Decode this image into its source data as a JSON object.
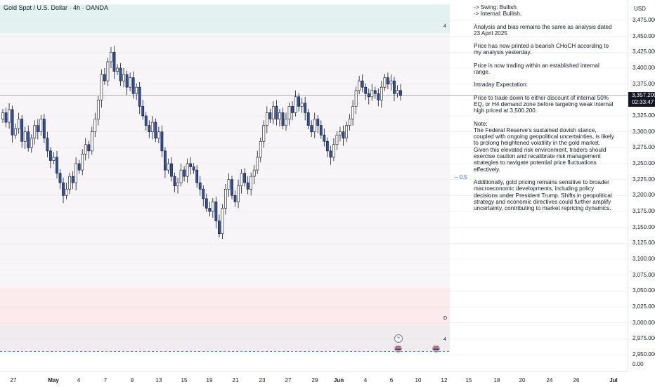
{
  "symbol": {
    "title": "Gold Spot / U.S. Dollar · 4h · OANDA",
    "currency": "USD"
  },
  "last_price": {
    "price": "3,357.200",
    "countdown": "02:33:47"
  },
  "price_axis": {
    "labels": [
      "3,475.000",
      "3,450.000",
      "3,425.000",
      "3,400.000",
      "3,375.000",
      "3,325.000",
      "3,300.000",
      "3,275.000",
      "3,250.000",
      "3,225.000",
      "3,200.000",
      "3,175.000",
      "3,150.000",
      "3,125.000",
      "3,100.000",
      "3,075.000",
      "3,050.000",
      "3,025.000",
      "3,000.000",
      "2,975.000",
      "2,950.000",
      "0.00"
    ],
    "values": [
      3475,
      3450,
      3425,
      3400,
      3375,
      3325,
      3300,
      3275,
      3250,
      3225,
      3200,
      3175,
      3150,
      3125,
      3100,
      3075,
      3050,
      3025,
      3000,
      2975,
      2950,
      null
    ]
  },
  "time_axis": [
    {
      "label": "27",
      "month": false
    },
    {
      "label": "May",
      "month": true
    },
    {
      "label": "4",
      "month": false
    },
    {
      "label": "7",
      "month": false
    },
    {
      "label": "9",
      "month": false
    },
    {
      "label": "13",
      "month": false
    },
    {
      "label": "15",
      "month": false
    },
    {
      "label": "19",
      "month": false
    },
    {
      "label": "21",
      "month": false
    },
    {
      "label": "23",
      "month": false
    },
    {
      "label": "27",
      "month": false
    },
    {
      "label": "29",
      "month": false
    },
    {
      "label": "Jun",
      "month": true
    },
    {
      "label": "4",
      "month": false
    },
    {
      "label": "6",
      "month": false
    },
    {
      "label": "10",
      "month": false
    },
    {
      "label": "12",
      "month": false
    },
    {
      "label": "15",
      "month": false
    },
    {
      "label": "18",
      "month": false
    },
    {
      "label": "20",
      "month": false
    },
    {
      "label": "24",
      "month": false
    },
    {
      "label": "26",
      "month": false
    },
    {
      "label": "Jul",
      "month": true
    }
  ],
  "zones": [
    {
      "name": "supply-zone",
      "from": 3455,
      "to": 3500,
      "color": "#e3f2f1"
    },
    {
      "name": "range-zone",
      "from": 3055,
      "to": 3455,
      "color": "#f7f5f7"
    },
    {
      "name": "demand-zone",
      "from": 2996,
      "to": 3055,
      "color": "#fcebec"
    },
    {
      "name": "lower-zone",
      "from": 2955,
      "to": 2996,
      "color": "#efebef"
    }
  ],
  "fib": {
    "label": "0.5",
    "price": 3228
  },
  "markers": {
    "a": "4",
    "b": "D",
    "c": "4"
  },
  "notes": [
    "-> Swing:  Bullish.",
    "-> Internal:  Bullish.",
    "Analysis and bias remains the same as analysis dated 23 April 2025",
    "Price has now printed a bearish CHoCH according to my analysis yesterday.",
    "Price is now trading within an established internal range.",
    "Intraday Expectation:",
    "Price to trade down to either discount of internal 50% EQ, or H4 demand zone before targeting weak internal high priced at 3,500.200.",
    "Note:",
    "The Federal Reserve’s sustained dovish stance, coupled with ongoing geopolitical uncertainties, is likely to prolong heightened volatility in the gold market. Given this elevated risk environment, traders should exercise caution and recalibrate risk management strategies to navigate potential price fluctuations effectively.",
    "Additionally, gold pricing remains sensitive to broader macroeconomic developments, including policy decisions under President Trump. Shifts in geopolitical strategy and economic directives could further amplify uncertainty, contributing to market repricing dynamics."
  ],
  "colors": {
    "up": "#ffffff",
    "down": "#2c4fa8",
    "wick": "#131722",
    "grid": "#e6e6ea",
    "accent": "#2962ff"
  },
  "chart_data": {
    "type": "candlestick",
    "title": "Gold Spot / U.S. Dollar · 4h · OANDA",
    "ylim": [
      2940,
      3500
    ],
    "last_price": 3357.2,
    "series": [
      {
        "values": [
          3330,
          3315,
          3335,
          3295,
          3305,
          3320,
          3285,
          3300,
          3275,
          3290,
          3310,
          3300,
          3320,
          3290,
          3270,
          3255,
          3260,
          3235,
          3220,
          3200,
          3210,
          3230,
          3220,
          3250,
          3240,
          3265,
          3280,
          3270,
          3300,
          3320,
          3350,
          3390,
          3380,
          3410,
          3425,
          3395,
          3400,
          3380,
          3390,
          3370,
          3385,
          3360,
          3370,
          3340,
          3325,
          3310,
          3300,
          3315,
          3290,
          3300,
          3270,
          3240,
          3250,
          3230,
          3215,
          3220,
          3240,
          3230,
          3250,
          3245,
          3240,
          3220,
          3210,
          3195,
          3180,
          3175,
          3190,
          3160,
          3140,
          3180,
          3210,
          3225,
          3200,
          3190,
          3215,
          3235,
          3220,
          3210,
          3230,
          3240,
          3260,
          3285,
          3310,
          3330,
          3320,
          3340,
          3320,
          3330,
          3310,
          3320,
          3340,
          3330,
          3355,
          3340,
          3345,
          3330,
          3310,
          3300,
          3320,
          3310,
          3295,
          3285,
          3270,
          3260,
          3280,
          3295,
          3300,
          3290,
          3310,
          3320,
          3340,
          3365,
          3380,
          3370,
          3360,
          3355,
          3365,
          3360,
          3350,
          3370,
          3385,
          3375,
          3380,
          3360,
          3365,
          3357
        ]
      }
    ]
  }
}
